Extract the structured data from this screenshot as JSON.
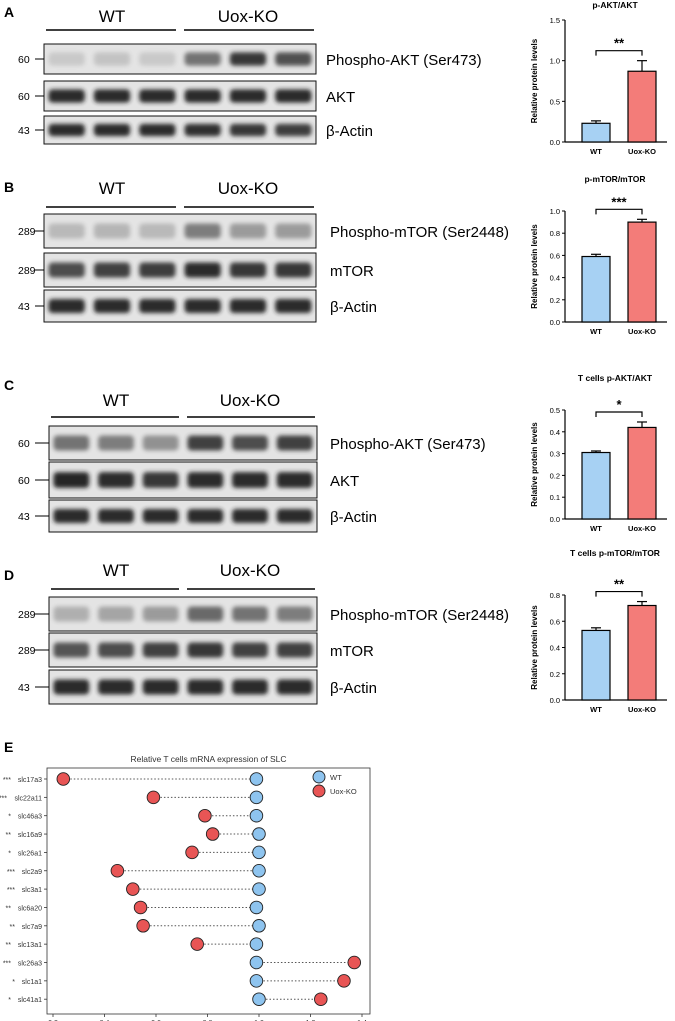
{
  "panels": [
    {
      "letter": "A",
      "groups": [
        "WT",
        "Uox-KO"
      ],
      "blots": [
        {
          "mw": "60",
          "label": "Phospho-AKT (Ser473)",
          "wt": [
            0.12,
            0.15,
            0.12
          ],
          "ko": [
            0.55,
            0.85,
            0.72
          ]
        },
        {
          "mw": "60",
          "label": "AKT",
          "wt": [
            0.92,
            0.92,
            0.92
          ],
          "ko": [
            0.92,
            0.9,
            0.92
          ]
        },
        {
          "mw": "43",
          "label": "β-Actin",
          "wt": [
            0.9,
            0.9,
            0.9
          ],
          "ko": [
            0.88,
            0.85,
            0.82
          ]
        }
      ],
      "bar_chart": {
        "title": "p-AKT/AKT",
        "ylabel": "Relative protein levels",
        "categories": [
          "WT",
          "Uox-KO"
        ],
        "values": [
          0.23,
          0.87
        ],
        "errors": [
          0.03,
          0.13
        ],
        "ylim": [
          0,
          1.5
        ],
        "yticks": [
          "0.0",
          "0.5",
          "1.0",
          "1.5"
        ],
        "significance": "**"
      }
    },
    {
      "letter": "B",
      "groups": [
        "WT",
        "Uox-KO"
      ],
      "blots": [
        {
          "mw": "289",
          "label": "Phospho-mTOR (Ser2448)",
          "wt": [
            0.2,
            0.22,
            0.2
          ],
          "ko": [
            0.5,
            0.35,
            0.35
          ]
        },
        {
          "mw": "289",
          "label": "mTOR",
          "wt": [
            0.75,
            0.8,
            0.82
          ],
          "ko": [
            0.9,
            0.85,
            0.85
          ]
        },
        {
          "mw": "43",
          "label": "β-Actin",
          "wt": [
            0.9,
            0.9,
            0.9
          ],
          "ko": [
            0.9,
            0.9,
            0.9
          ]
        }
      ],
      "bar_chart": {
        "title": "p-mTOR/mTOR",
        "ylabel": "Relative protein levels",
        "categories": [
          "WT",
          "Uox-KO"
        ],
        "values": [
          0.59,
          0.9
        ],
        "errors": [
          0.02,
          0.025
        ],
        "ylim": [
          0,
          1.0
        ],
        "yticks": [
          "0.0",
          "0.2",
          "0.4",
          "0.6",
          "0.8",
          "1.0"
        ],
        "significance": "***"
      }
    },
    {
      "letter": "C",
      "groups": [
        "WT",
        "Uox-KO"
      ],
      "blots": [
        {
          "mw": "60",
          "label": "Phospho-AKT (Ser473)",
          "wt": [
            0.55,
            0.5,
            0.4
          ],
          "ko": [
            0.8,
            0.75,
            0.8
          ]
        },
        {
          "mw": "60",
          "label": "AKT",
          "wt": [
            0.95,
            0.9,
            0.85
          ],
          "ko": [
            0.9,
            0.9,
            0.9
          ]
        },
        {
          "mw": "43",
          "label": "β-Actin",
          "wt": [
            0.9,
            0.9,
            0.9
          ],
          "ko": [
            0.9,
            0.9,
            0.9
          ]
        }
      ],
      "bar_chart": {
        "title": "T cells p-AKT/AKT",
        "ylabel": "Relative protein levels",
        "categories": [
          "WT",
          "Uox-KO"
        ],
        "values": [
          0.305,
          0.42
        ],
        "errors": [
          0.007,
          0.025
        ],
        "ylim": [
          0,
          0.5
        ],
        "yticks": [
          "0.0",
          "0.1",
          "0.2",
          "0.3",
          "0.4",
          "0.5"
        ],
        "significance": "*"
      }
    },
    {
      "letter": "D",
      "groups": [
        "WT",
        "Uox-KO"
      ],
      "blots": [
        {
          "mw": "289",
          "label": "Phospho-mTOR (Ser2448)",
          "wt": [
            0.25,
            0.3,
            0.35
          ],
          "ko": [
            0.6,
            0.55,
            0.5
          ]
        },
        {
          "mw": "289",
          "label": "mTOR",
          "wt": [
            0.7,
            0.75,
            0.8
          ],
          "ko": [
            0.85,
            0.8,
            0.8
          ]
        },
        {
          "mw": "43",
          "label": "β-Actin",
          "wt": [
            0.9,
            0.9,
            0.9
          ],
          "ko": [
            0.9,
            0.9,
            0.9
          ]
        }
      ],
      "bar_chart": {
        "title": "T cells p-mTOR/mTOR",
        "ylabel": "Relative protein levels",
        "categories": [
          "WT",
          "Uox-KO"
        ],
        "values": [
          0.53,
          0.72
        ],
        "errors": [
          0.02,
          0.03
        ],
        "ylim": [
          0,
          0.8
        ],
        "yticks": [
          "0.0",
          "0.2",
          "0.4",
          "0.6",
          "0.8"
        ],
        "significance": "**"
      }
    }
  ],
  "panel_e": {
    "letter": "E",
    "chart_data": {
      "type": "scatter",
      "title": "Relative T cells mRNA expression of SLC",
      "legend": [
        "WT",
        "Uox-KO"
      ],
      "legend_position": "top-right",
      "xlim": [
        0.2,
        1.4
      ],
      "xticks": [
        "0.2",
        "0.4",
        "0.6",
        "0.8",
        "1.0",
        "1.2",
        "1.4"
      ],
      "genes": [
        "slc17a3",
        "slc22a11",
        "slc46a3",
        "slc16a9",
        "slc26a1",
        "slc2a9",
        "slc3a1",
        "slc6a20",
        "slc7a9",
        "slc13a1",
        "slc26a3",
        "slc1a1",
        "slc41a1"
      ],
      "significance": [
        "***",
        "***",
        "*",
        "**",
        "*",
        "***",
        "***",
        "**",
        "**",
        "**",
        "***",
        "*",
        "*"
      ],
      "wt": [
        0.99,
        0.99,
        0.99,
        1.0,
        1.0,
        1.0,
        1.0,
        0.99,
        1.0,
        0.99,
        0.99,
        0.99,
        1.0
      ],
      "uox_ko": [
        0.24,
        0.59,
        0.79,
        0.82,
        0.74,
        0.45,
        0.51,
        0.54,
        0.55,
        0.76,
        1.37,
        1.33,
        1.24
      ]
    }
  },
  "colors": {
    "wt": "#a7d1f3",
    "ko": "#f37c79",
    "wt_dot": "#8ec4ef",
    "ko_dot": "#e85555"
  }
}
